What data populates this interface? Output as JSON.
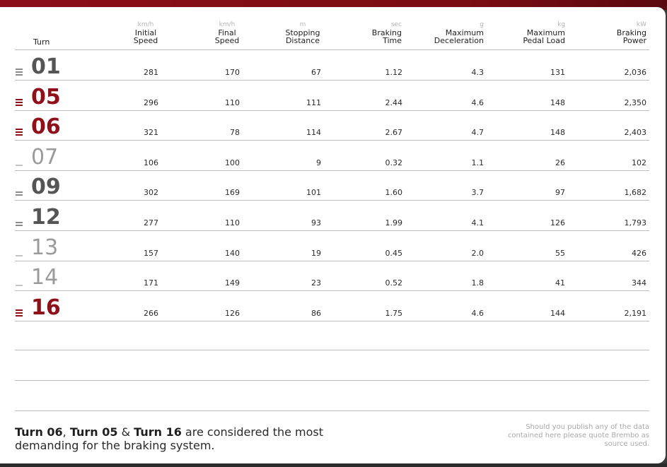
{
  "header": {
    "turn_label": "Turn",
    "columns": [
      {
        "unit": "km/h",
        "line1": "Initial",
        "line2": "Speed"
      },
      {
        "unit": "km/h",
        "line1": "Final",
        "line2": "Speed"
      },
      {
        "unit": "m",
        "line1": "Stopping",
        "line2": "Distance"
      },
      {
        "unit": "sec",
        "line1": "Braking",
        "line2": "Time"
      },
      {
        "unit": "g",
        "line1": "Maximum",
        "line2": "Deceleration"
      },
      {
        "unit": "kg",
        "line1": "Maximum",
        "line2": "Pedal Load"
      },
      {
        "unit": "kW",
        "line1": "Braking",
        "line2": "Power"
      }
    ]
  },
  "rows": [
    {
      "turn": "01",
      "severity": 3,
      "tone": "dark",
      "values": [
        "281",
        "170",
        "67",
        "1.12",
        "4.3",
        "131",
        "2,036"
      ]
    },
    {
      "turn": "05",
      "severity": 3,
      "tone": "red",
      "values": [
        "296",
        "110",
        "111",
        "2.44",
        "4.6",
        "148",
        "2,350"
      ]
    },
    {
      "turn": "06",
      "severity": 3,
      "tone": "red",
      "values": [
        "321",
        "78",
        "114",
        "2.67",
        "4.7",
        "148",
        "2,403"
      ]
    },
    {
      "turn": "07",
      "severity": 1,
      "tone": "light",
      "values": [
        "106",
        "100",
        "9",
        "0.32",
        "1.1",
        "26",
        "102"
      ]
    },
    {
      "turn": "09",
      "severity": 2,
      "tone": "dark",
      "values": [
        "302",
        "169",
        "101",
        "1.60",
        "3.7",
        "97",
        "1,682"
      ]
    },
    {
      "turn": "12",
      "severity": 2,
      "tone": "dark",
      "values": [
        "277",
        "110",
        "93",
        "1.99",
        "4.1",
        "126",
        "1,793"
      ]
    },
    {
      "turn": "13",
      "severity": 1,
      "tone": "light",
      "values": [
        "157",
        "140",
        "19",
        "0.45",
        "2.0",
        "55",
        "426"
      ]
    },
    {
      "turn": "14",
      "severity": 1,
      "tone": "light",
      "values": [
        "171",
        "149",
        "23",
        "0.52",
        "1.8",
        "41",
        "344"
      ]
    },
    {
      "turn": "16",
      "severity": 3,
      "tone": "red",
      "values": [
        "266",
        "126",
        "86",
        "1.75",
        "4.6",
        "144",
        "2,191"
      ]
    }
  ],
  "footer": {
    "t1": "Turn 06",
    "sep1": ", ",
    "t2": "Turn 05",
    "sep2": " & ",
    "t3": "Turn 16",
    "rest": " are considered the most demanding for the braking system.",
    "note": "Should you publish any of the data contained here please quote Brembo as source used."
  },
  "colors": {
    "red": "#8f1019",
    "dark": "#555555",
    "light": "#9a9a9a"
  }
}
